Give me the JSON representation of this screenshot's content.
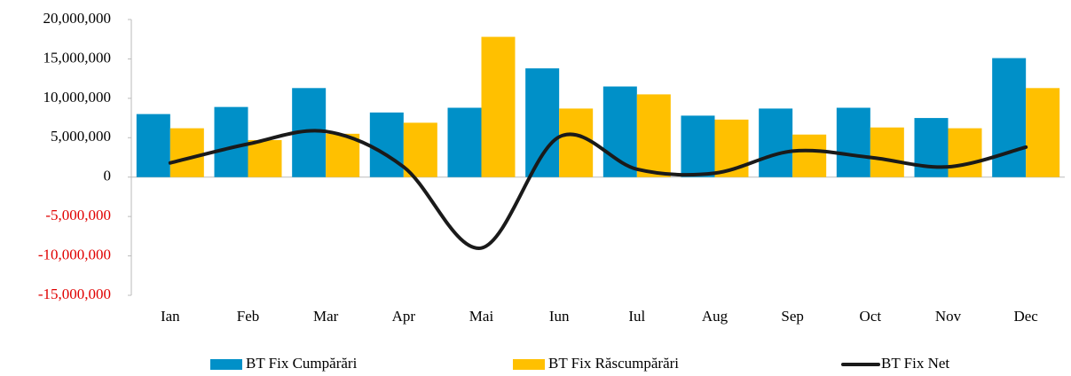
{
  "chart_data": {
    "type": "bar_line",
    "categories": [
      "Ian",
      "Feb",
      "Mar",
      "Apr",
      "Mai",
      "Iun",
      "Iul",
      "Aug",
      "Sep",
      "Oct",
      "Nov",
      "Dec"
    ],
    "series": [
      {
        "name": "BT Fix Cumpărări",
        "type": "bar",
        "color": "#0090c8",
        "values": [
          8000000,
          8900000,
          11300000,
          8200000,
          8800000,
          13800000,
          11500000,
          7800000,
          8700000,
          8800000,
          7500000,
          15100000
        ]
      },
      {
        "name": "BT Fix Răscumpărări",
        "type": "bar",
        "color": "#ffc000",
        "values": [
          6200000,
          4700000,
          5500000,
          6900000,
          17800000,
          8700000,
          10500000,
          7300000,
          5400000,
          6300000,
          6200000,
          11300000
        ]
      },
      {
        "name": "BT Fix Net",
        "type": "line",
        "color": "#1a1a1a",
        "values": [
          1800000,
          4200000,
          5800000,
          1300000,
          -9000000,
          5100000,
          1000000,
          500000,
          3300000,
          2500000,
          1300000,
          3800000
        ]
      }
    ],
    "ylim": [
      -15000000,
      20000000
    ],
    "yticks": [
      {
        "value": 20000000,
        "label": "20,000,000"
      },
      {
        "value": 15000000,
        "label": "15,000,000"
      },
      {
        "value": 10000000,
        "label": "10,000,000"
      },
      {
        "value": 5000000,
        "label": "5,000,000"
      },
      0,
      {
        "value": -5000000,
        "label": "-5,000,000"
      },
      {
        "value": -10000000,
        "label": "-10,000,000"
      },
      {
        "value": -15000000,
        "label": "-15,000,000"
      }
    ],
    "negative_tick_color": "#e00000",
    "legend": "bottom"
  }
}
